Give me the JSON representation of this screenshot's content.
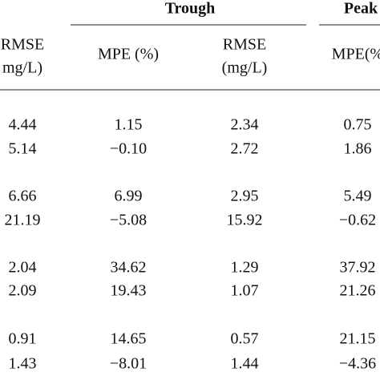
{
  "table": {
    "group_headers": [
      "Trough",
      "Peak"
    ],
    "column_headers": [
      [
        "RMSE",
        "mg/L)"
      ],
      [
        "MPE (%)"
      ],
      [
        "RMSE",
        "(mg/L)"
      ],
      [
        "MPE(%"
      ]
    ],
    "rows": [
      [
        "4.44",
        "1.15",
        "2.34",
        "0.75"
      ],
      [
        "5.14",
        "−0.10",
        "2.72",
        "1.86"
      ],
      [
        "6.66",
        "6.99",
        "2.95",
        "5.49"
      ],
      [
        "21.19",
        "−5.08",
        "15.92",
        "−0.62"
      ],
      [
        "2.04",
        "34.62",
        "1.29",
        "37.92"
      ],
      [
        "2.09",
        "19.43",
        "1.07",
        "21.26"
      ],
      [
        "0.91",
        "14.65",
        "0.57",
        "21.15"
      ],
      [
        "1.43",
        "−8.01",
        "1.44",
        "−4.36"
      ]
    ]
  }
}
